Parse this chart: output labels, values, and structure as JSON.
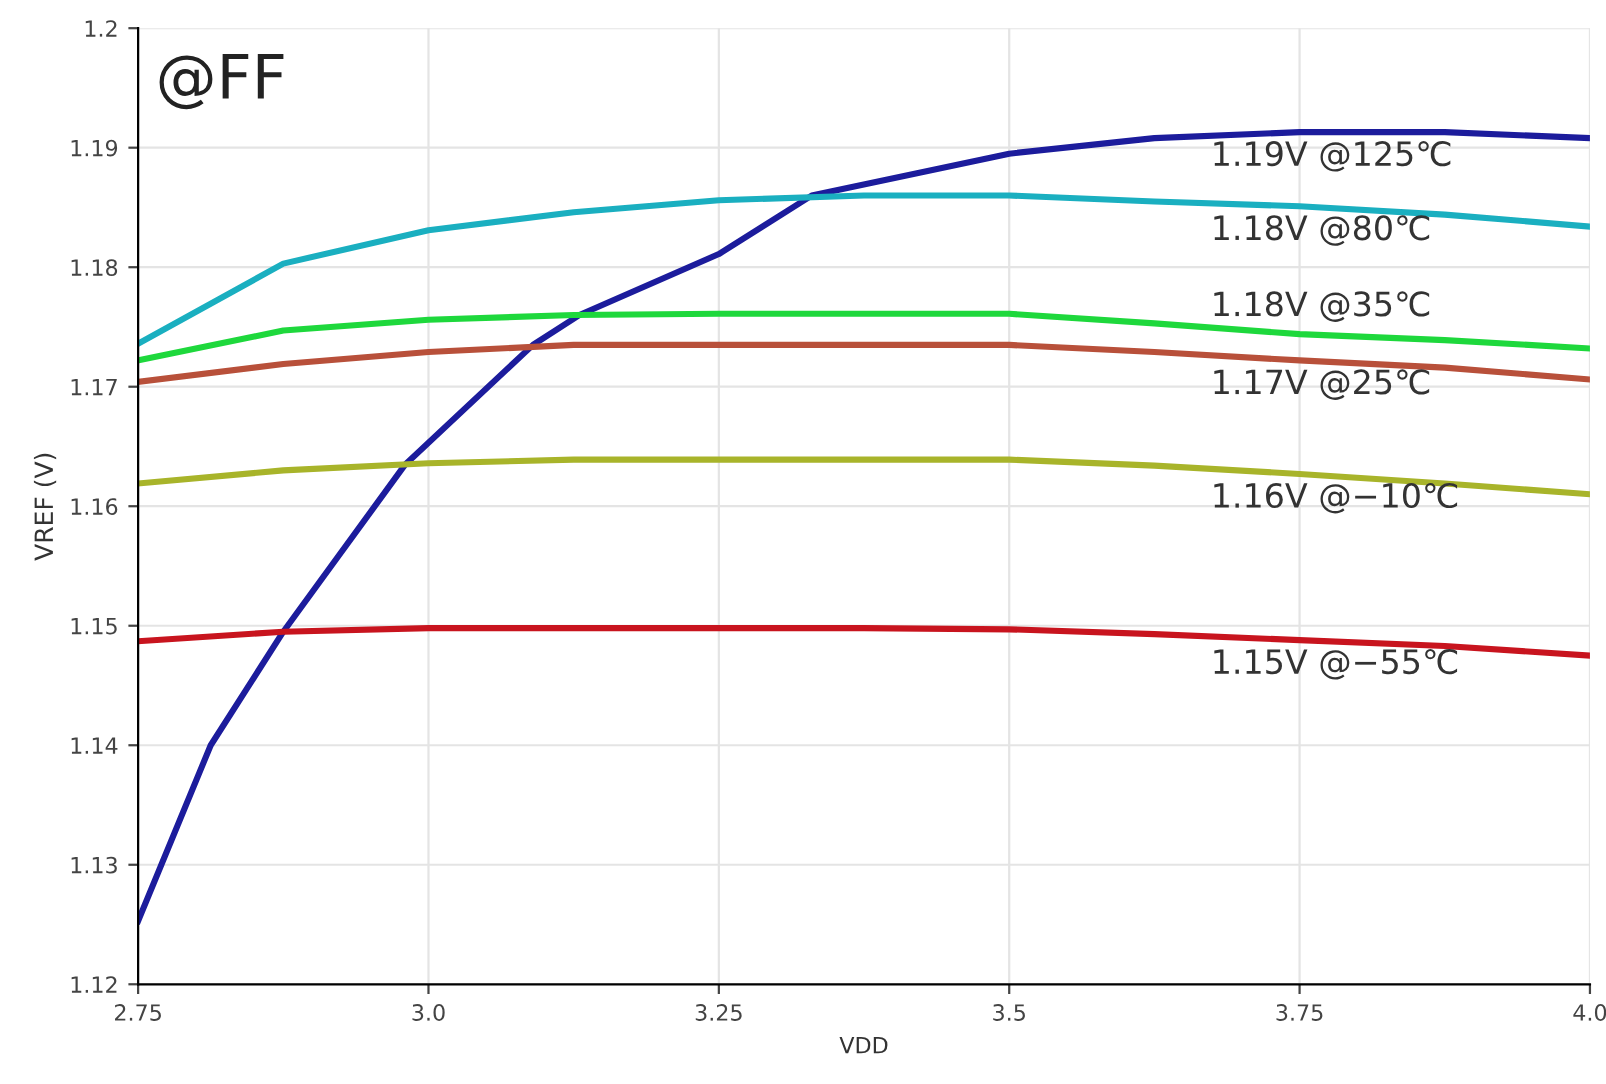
{
  "chart_data": {
    "type": "line",
    "xlabel": "VDD",
    "ylabel": "VREF (V)",
    "annotations": [
      "@FF"
    ],
    "xlim": [
      2.75,
      4.0
    ],
    "ylim": [
      1.12,
      1.2
    ],
    "xticks": [
      2.75,
      {
        "value": 3.0,
        "label": "3.0"
      },
      3.25,
      3.5,
      3.75,
      {
        "value": 4.0,
        "label": "4.0"
      }
    ],
    "yticks": [
      1.12,
      1.13,
      1.14,
      1.15,
      1.16,
      1.17,
      1.18,
      1.19,
      1.2
    ],
    "grid": true,
    "legend": false,
    "marker": "none",
    "line_style": "solid",
    "series": [
      {
        "name": "1.19V @125℃",
        "color": "#1c1c9c",
        "x": [
          2.75,
          2.8125,
          2.875,
          2.92,
          2.98,
          3.09,
          3.13,
          3.25,
          3.33,
          3.5,
          3.625,
          3.75,
          3.875,
          4.0
        ],
        "values": [
          1.1253,
          1.14,
          1.1495,
          1.1555,
          1.1635,
          1.1735,
          1.176,
          1.1811,
          1.186,
          1.1895,
          1.1908,
          1.1913,
          1.1913,
          1.1908
        ]
      },
      {
        "name": "1.18V @80℃",
        "color": "#1aafc0",
        "x": [
          2.75,
          2.875,
          3.0,
          3.125,
          3.25,
          3.375,
          3.5,
          3.625,
          3.75,
          3.875,
          4.0
        ],
        "values": [
          1.1736,
          1.1803,
          1.1831,
          1.1846,
          1.1856,
          1.186,
          1.186,
          1.1855,
          1.1851,
          1.1844,
          1.1834
        ]
      },
      {
        "name": "1.18V @35℃",
        "color": "#1ed83c",
        "x": [
          2.75,
          2.875,
          3.0,
          3.125,
          3.25,
          3.375,
          3.5,
          3.625,
          3.75,
          3.875,
          4.0
        ],
        "values": [
          1.1722,
          1.1747,
          1.1756,
          1.176,
          1.1761,
          1.1761,
          1.1761,
          1.1753,
          1.1744,
          1.1739,
          1.1732
        ]
      },
      {
        "name": "1.17V @25℃",
        "color": "#b8503a",
        "x": [
          2.75,
          2.875,
          3.0,
          3.125,
          3.25,
          3.375,
          3.5,
          3.625,
          3.75,
          3.875,
          4.0
        ],
        "values": [
          1.1704,
          1.1719,
          1.1729,
          1.1735,
          1.1735,
          1.1735,
          1.1735,
          1.1729,
          1.1722,
          1.1716,
          1.1706
        ]
      },
      {
        "name": "1.16V @−10℃",
        "color": "#a8b42a",
        "x": [
          2.75,
          2.875,
          3.0,
          3.125,
          3.25,
          3.375,
          3.5,
          3.625,
          3.75,
          3.875,
          4.0
        ],
        "values": [
          1.1619,
          1.163,
          1.1636,
          1.1639,
          1.1639,
          1.1639,
          1.1639,
          1.1634,
          1.1627,
          1.1619,
          1.161
        ]
      },
      {
        "name": "1.15V @−55℃",
        "color": "#c8141e",
        "x": [
          2.75,
          2.875,
          3.0,
          3.125,
          3.25,
          3.375,
          3.5,
          3.625,
          3.75,
          3.875,
          4.0
        ],
        "values": [
          1.1487,
          1.1495,
          1.1498,
          1.1498,
          1.1498,
          1.1498,
          1.1497,
          1.1493,
          1.1488,
          1.1483,
          1.1475
        ]
      }
    ]
  }
}
